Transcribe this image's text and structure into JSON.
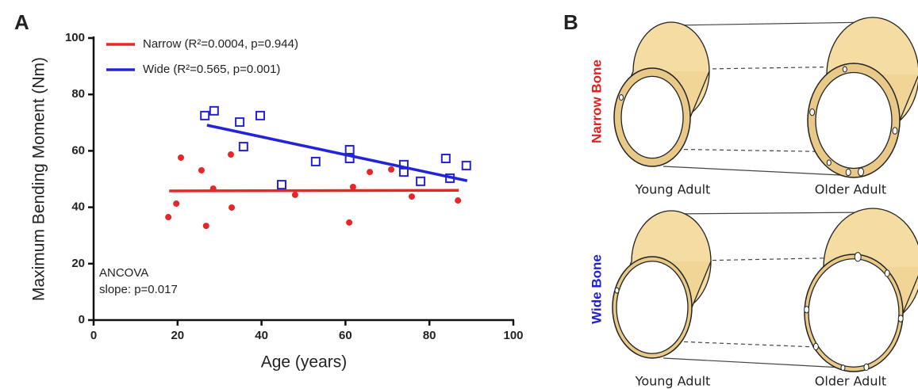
{
  "chart_data": {
    "type": "scatter",
    "panel_label": "A",
    "xlabel": "Age (years)",
    "ylabel": "Maximum Bending Moment (Nm)",
    "xlim": [
      0,
      100
    ],
    "ylim": [
      0,
      100
    ],
    "xticks": [
      0,
      20,
      40,
      60,
      80,
      100
    ],
    "yticks": [
      0,
      20,
      40,
      60,
      80,
      100
    ],
    "annotations": [
      "ANCOVA",
      "slope: p=0.017"
    ],
    "series": [
      {
        "name": "Narrow (R²=0.0004, p=0.944)",
        "color": "#e8262a",
        "marker": "circle",
        "x": [
          17.8,
          19.7,
          20.8,
          25.7,
          26.8,
          28.5,
          32.7,
          32.9,
          48,
          60.9,
          61.8,
          65.8,
          70.9,
          75.8,
          86.8
        ],
        "values": [
          36.5,
          41.3,
          57.6,
          53.1,
          33.4,
          46.6,
          58.7,
          39.9,
          44.4,
          34.6,
          47.2,
          52.5,
          53.4,
          43.8,
          42.4
        ],
        "fit": {
          "x": [
            18,
            87
          ],
          "values": [
            45.8,
            46
          ]
        }
      },
      {
        "name": "Wide (R²=0.565, p=0.001)",
        "color": "#2323d8",
        "marker": "square",
        "x": [
          26.5,
          28.7,
          34.8,
          35.7,
          39.7,
          44.8,
          52.9,
          61,
          61,
          73.9,
          73.9,
          77.9,
          83.9,
          84.9,
          88.8
        ],
        "values": [
          72.5,
          74.2,
          70.2,
          61.5,
          72.5,
          48,
          56.2,
          60.4,
          57.3,
          55.1,
          52.5,
          49.2,
          57.3,
          50.3,
          54.8
        ],
        "fit": {
          "x": [
            27,
            89
          ],
          "values": [
            69.1,
            49.4
          ]
        }
      }
    ]
  },
  "panel_b": {
    "label": "B",
    "rows": [
      {
        "label": "Narrow Bone",
        "color": "#e02020",
        "columns": [
          "Young Adult",
          "Older Adult"
        ]
      },
      {
        "label": "Wide Bone",
        "color": "#2020d0",
        "columns": [
          "Young Adult",
          "Older Adult"
        ]
      }
    ]
  }
}
